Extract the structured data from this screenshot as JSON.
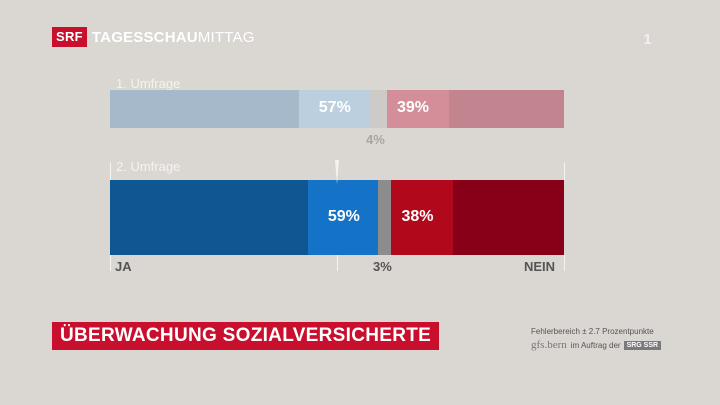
{
  "header": {
    "brand": "SRF",
    "show_bold": "TAGESSCHAU",
    "show_light": "MITTAG",
    "channel_bug": "1"
  },
  "chart_data": {
    "type": "bar",
    "orientation": "horizontal-stacked",
    "axis_left_label": "JA",
    "axis_right_label": "NEIN",
    "surveys": [
      {
        "label": "1. Umfrage",
        "yes": 57,
        "undecided": 4,
        "no": 39,
        "yes_label": "57%",
        "undecided_label": "4%",
        "no_label": "39%"
      },
      {
        "label": "2. Umfrage",
        "yes": 59,
        "undecided": 3,
        "no": 38,
        "yes_label": "59%",
        "undecided_label": "3%",
        "no_label": "38%"
      }
    ],
    "colors": {
      "survey1": {
        "yes_dark": "#a5b9cb",
        "yes_light": "#bccfdf",
        "undecided": "#cdcbc7",
        "no_light": "#d38e99",
        "no_dark": "#c28590"
      },
      "survey2": {
        "yes_dark": "#0f5793",
        "yes_light": "#1473c6",
        "undecided": "#8c8c8c",
        "no_light": "#b2081c",
        "no_dark": "#870018"
      }
    }
  },
  "footer": {
    "title": "ÜBERWACHUNG SOZIALVERSICHERTE",
    "credit_line": "Fehlerbereich ± 2.7 Prozentpunkte",
    "pollster": "gfs.bern",
    "commission": "im Auftrag der",
    "client": "SRG SSR"
  }
}
